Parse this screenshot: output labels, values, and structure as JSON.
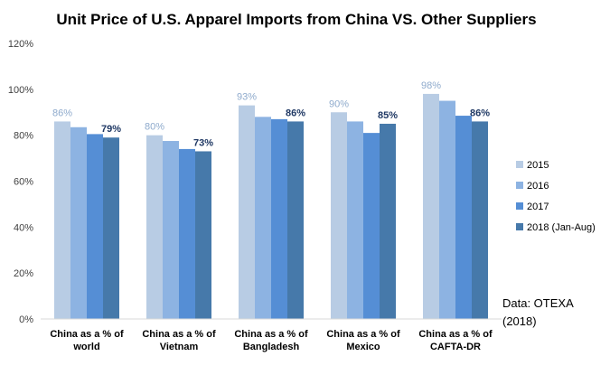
{
  "chart_data": {
    "type": "bar",
    "title": "Unit Price of U.S. Apparel Imports from China VS. Other Suppliers",
    "xlabel": "",
    "ylabel": "",
    "ylim": [
      0,
      120
    ],
    "yticks": [
      "0%",
      "20%",
      "40%",
      "60%",
      "80%",
      "100%",
      "120%"
    ],
    "ytick_values": [
      0,
      20,
      40,
      60,
      80,
      100,
      120
    ],
    "grid": false,
    "legend_position": "right",
    "categories": [
      [
        "China as a % of",
        "world"
      ],
      [
        "China as a % of",
        "Vietnam"
      ],
      [
        "China as a % of",
        "Bangladesh"
      ],
      [
        "China as a % of",
        "Mexico"
      ],
      [
        "China as a % of",
        "CAFTA-DR"
      ]
    ],
    "series": [
      {
        "name": "2015",
        "color": "#b8cce4",
        "values": [
          86,
          80,
          93,
          90,
          98
        ]
      },
      {
        "name": "2016",
        "color": "#8db3e2",
        "values": [
          83.5,
          77.5,
          88,
          86,
          95
        ]
      },
      {
        "name": "2017",
        "color": "#558ed5",
        "values": [
          80.5,
          74,
          87,
          81,
          88.5
        ]
      },
      {
        "name": "2018 (Jan-Aug)",
        "color": "#4679aa",
        "values": [
          79,
          73,
          86,
          85,
          86
        ]
      }
    ],
    "data_labels": [
      {
        "series": 0,
        "category": 0,
        "text": "86%",
        "color": "#8eaacc"
      },
      {
        "series": 3,
        "category": 0,
        "text": "79%",
        "color": "#1f3864"
      },
      {
        "series": 0,
        "category": 1,
        "text": "80%",
        "color": "#8eaacc"
      },
      {
        "series": 3,
        "category": 1,
        "text": "73%",
        "color": "#1f3864"
      },
      {
        "series": 0,
        "category": 2,
        "text": "93%",
        "color": "#8eaacc"
      },
      {
        "series": 3,
        "category": 2,
        "text": "86%",
        "color": "#1f3864"
      },
      {
        "series": 0,
        "category": 3,
        "text": "90%",
        "color": "#8eaacc"
      },
      {
        "series": 3,
        "category": 3,
        "text": "85%",
        "color": "#1f3864"
      },
      {
        "series": 0,
        "category": 4,
        "text": "98%",
        "color": "#8eaacc"
      },
      {
        "series": 3,
        "category": 4,
        "text": "86%",
        "color": "#1f3864"
      }
    ],
    "source": [
      "Data: OTEXA",
      "(2018)"
    ]
  }
}
